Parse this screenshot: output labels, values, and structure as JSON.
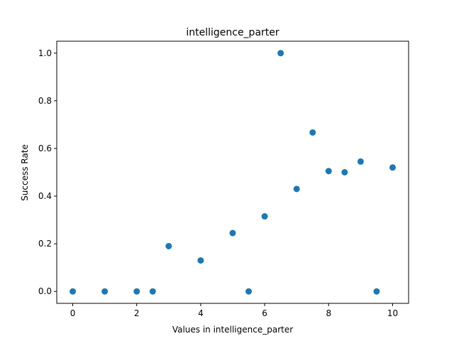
{
  "chart_data": {
    "type": "scatter",
    "title": "intelligence_parter",
    "xlabel": "Values in intelligence_parter",
    "ylabel": "Success Rate",
    "xlim": [
      -0.5,
      10.5
    ],
    "ylim": [
      -0.05,
      1.05
    ],
    "xticks": [
      0,
      2,
      4,
      6,
      8,
      10
    ],
    "yticks": [
      0.0,
      0.2,
      0.4,
      0.6,
      0.8,
      1.0
    ],
    "xtick_labels": [
      "0",
      "2",
      "4",
      "6",
      "8",
      "10"
    ],
    "ytick_labels": [
      "0.0",
      "0.2",
      "0.4",
      "0.6",
      "0.8",
      "1.0"
    ],
    "grid": false,
    "marker_color": "#1f77b4",
    "series": [
      {
        "x": [
          0,
          1,
          2,
          2.5,
          3,
          4,
          5,
          5.5,
          6,
          6.5,
          7,
          7.5,
          8,
          8.5,
          9,
          9.5,
          10
        ],
        "y": [
          0.0,
          0.0,
          0.0,
          0.0,
          0.19,
          0.13,
          0.245,
          0.0,
          0.315,
          1.0,
          0.43,
          0.667,
          0.505,
          0.5,
          0.545,
          0.0,
          0.52
        ]
      }
    ]
  }
}
